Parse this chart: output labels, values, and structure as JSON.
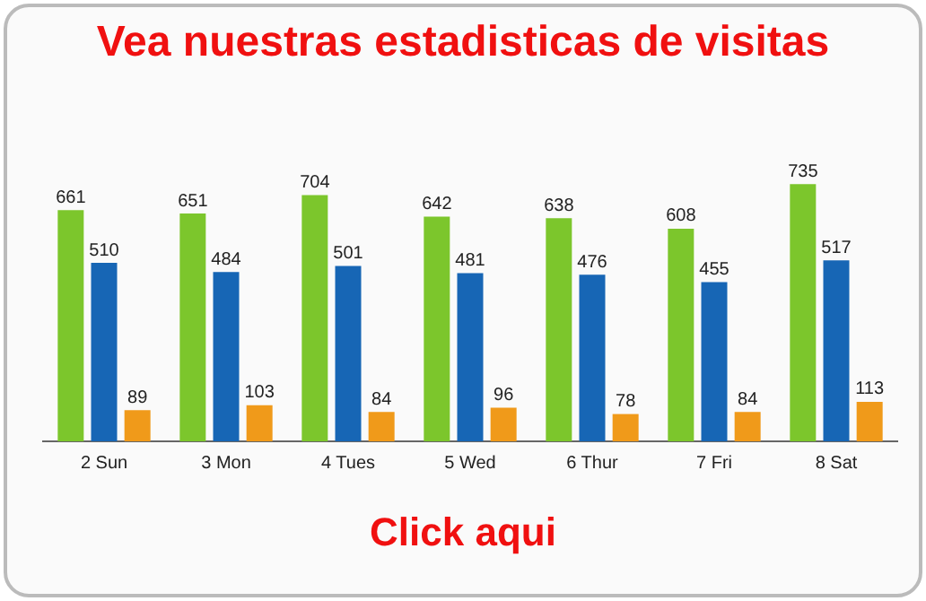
{
  "chart_data": {
    "type": "bar",
    "title": "Vea nuestras estadisticas de visitas",
    "categories": [
      "2 Sun",
      "3 Mon",
      "4 Tues",
      "5 Wed",
      "6 Thur",
      "7 Fri",
      "8 Sat"
    ],
    "series": [
      {
        "color": "#7cc62c",
        "values": [
          661,
          651,
          704,
          642,
          638,
          608,
          735
        ]
      },
      {
        "color": "#1766b5",
        "values": [
          510,
          484,
          501,
          481,
          476,
          455,
          517
        ]
      },
      {
        "color": "#f09a1a",
        "values": [
          89,
          103,
          84,
          96,
          78,
          84,
          113
        ]
      }
    ],
    "data_labels": true,
    "grid": false,
    "legend": false,
    "relative": false,
    "annotations": [
      "Click aqui"
    ]
  }
}
